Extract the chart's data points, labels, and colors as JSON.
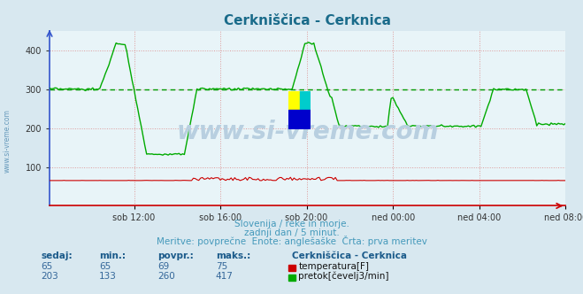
{
  "title": "Cerkniščica - Cerknica",
  "title_color": "#1a6b8a",
  "bg_color": "#d8e8f0",
  "plot_bg_color": "#e8f4f8",
  "grid_color": "#dd9999",
  "grid_color2": "#aabbcc",
  "x_labels": [
    "sob 12:00",
    "sob 16:00",
    "sob 20:00",
    "ned 00:00",
    "ned 04:00",
    "ned 08:00"
  ],
  "x_ticks_norm": [
    0.1667,
    0.3333,
    0.5,
    0.6667,
    0.8333,
    1.0
  ],
  "y_ticks": [
    100,
    200,
    300,
    400
  ],
  "ylim": [
    0,
    450
  ],
  "subtitle_lines": [
    "Slovenija / reke in morje.",
    "zadnji dan / 5 minut.",
    "Meritve: povprečne  Enote: anglešaške  Črta: prva meritev"
  ],
  "subtitle_color": "#4499bb",
  "watermark_text": "www.si-vreme.com",
  "watermark_color": "#b8cfe0",
  "temp_color": "#cc0000",
  "flow_color": "#00aa00",
  "avg_line_color": "#009900",
  "spine_left_color": "#3355cc",
  "spine_bottom_color": "#cc0000",
  "left_label_color": "#6699bb",
  "table_header_color": "#1a5a8a",
  "table_value_color": "#336699",
  "legend_title": "Cerkniščica - Cerknica",
  "table_headers": [
    "sedaj:",
    "min.:",
    "povpr.:",
    "maks.:"
  ],
  "temp_row": [
    65,
    65,
    69,
    75
  ],
  "flow_row": [
    203,
    133,
    260,
    417
  ],
  "temp_label": "temperatura[F]",
  "flow_label": "pretok[čevelj3/min]",
  "n_points": 288,
  "avg_flow": 300,
  "n_xticks": 6
}
